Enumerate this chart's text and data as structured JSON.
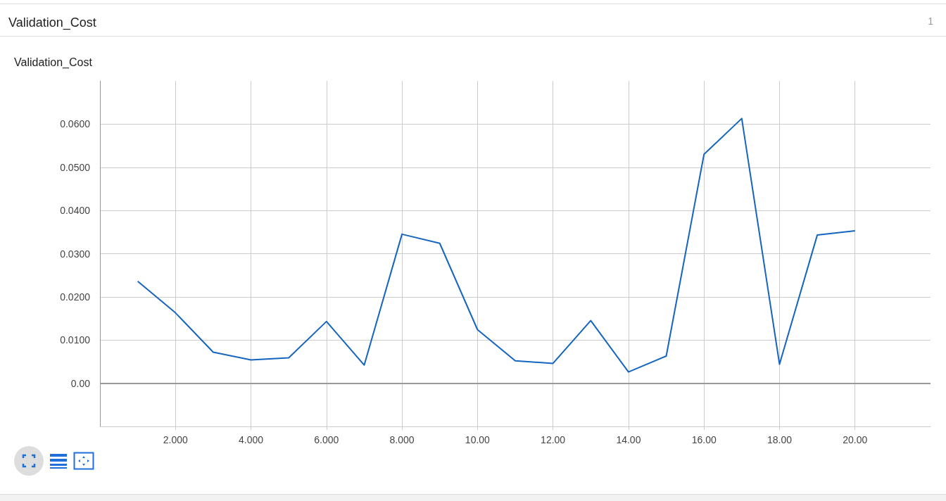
{
  "chart_data": {
    "type": "line",
    "title": "Validation_Cost",
    "annotations": [
      "Validation_Cost",
      "1"
    ],
    "x": [
      1,
      2,
      3,
      4,
      5,
      6,
      7,
      8,
      9,
      10,
      11,
      12,
      13,
      14,
      15,
      16,
      17,
      18,
      19,
      20
    ],
    "series": [
      {
        "color": "#1565c0",
        "values": [
          0.0236,
          0.0163,
          0.0072,
          0.0054,
          0.0059,
          0.0143,
          0.0042,
          0.0345,
          0.0324,
          0.0124,
          0.0052,
          0.0046,
          0.0145,
          0.0026,
          0.0063,
          0.053,
          0.0613,
          0.0044,
          0.0343,
          0.0353
        ]
      }
    ],
    "xlim": [
      0,
      22
    ],
    "xticks": [
      {
        "value": 2,
        "label": "2.000"
      },
      {
        "value": 4,
        "label": "4.000"
      },
      {
        "value": 6,
        "label": "6.000"
      },
      {
        "value": 8,
        "label": "8.000"
      },
      {
        "value": 10,
        "label": "10.00"
      },
      {
        "value": 12,
        "label": "12.00"
      },
      {
        "value": 14,
        "label": "14.00"
      },
      {
        "value": 16,
        "label": "16.00"
      },
      {
        "value": 18,
        "label": "18.00"
      },
      {
        "value": 20,
        "label": "20.00"
      }
    ],
    "ylim": [
      -0.01,
      0.07
    ],
    "yticks": [
      {
        "value": 0,
        "label": "0.00"
      },
      {
        "value": 0.01,
        "label": "0.0100"
      },
      {
        "value": 0.02,
        "label": "0.0200"
      },
      {
        "value": 0.03,
        "label": "0.0300"
      },
      {
        "value": 0.04,
        "label": "0.0400"
      },
      {
        "value": 0.05,
        "label": "0.0500"
      },
      {
        "value": 0.06,
        "label": "0.0600"
      }
    ],
    "grid": true,
    "marker": "none",
    "line_style": "solid"
  }
}
